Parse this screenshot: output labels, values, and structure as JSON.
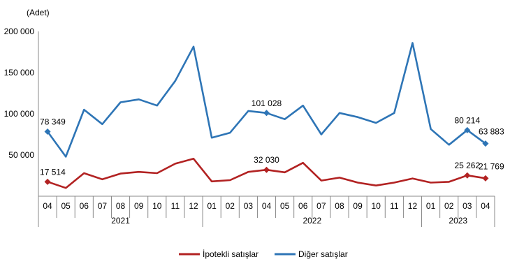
{
  "chart_data": {
    "type": "line",
    "unit_label": "(Adet)",
    "y_ticks": [
      "200 000",
      "150 000",
      "100 000",
      "50 000"
    ],
    "y_tick_values": [
      200000,
      150000,
      100000,
      50000
    ],
    "ylim": [
      0,
      200000
    ],
    "months": [
      "04",
      "05",
      "06",
      "07",
      "08",
      "09",
      "10",
      "11",
      "12",
      "01",
      "02",
      "03",
      "04",
      "05",
      "06",
      "07",
      "08",
      "09",
      "10",
      "11",
      "12",
      "01",
      "02",
      "03",
      "04"
    ],
    "years": [
      {
        "label": "2021",
        "start": 0,
        "end": 8
      },
      {
        "label": "2022",
        "start": 9,
        "end": 20
      },
      {
        "label": "2023",
        "start": 21,
        "end": 24
      }
    ],
    "grid": false,
    "legend_position": "bottom",
    "series": [
      {
        "name": "İpotekli satışlar",
        "color": "#b22222",
        "values": [
          17514,
          10000,
          28000,
          20500,
          27500,
          29500,
          28000,
          39500,
          45500,
          18000,
          19500,
          29500,
          32030,
          29000,
          40500,
          19000,
          22500,
          16500,
          13000,
          16500,
          21500,
          16500,
          17500,
          25262,
          21769
        ]
      },
      {
        "name": "Diğer satışlar",
        "color": "#2e75b6",
        "values": [
          78349,
          48000,
          105000,
          87500,
          114000,
          117500,
          110000,
          140000,
          181500,
          71000,
          77000,
          103500,
          101028,
          93500,
          110000,
          75000,
          101000,
          96000,
          89000,
          101000,
          186000,
          81500,
          62500,
          80214,
          63883
        ]
      }
    ],
    "annotations": [
      {
        "series": 1,
        "index": 0,
        "text": "78 349"
      },
      {
        "series": 1,
        "index": 12,
        "text": "101 028"
      },
      {
        "series": 1,
        "index": 23,
        "text": "80 214"
      },
      {
        "series": 1,
        "index": 24,
        "text": "63 883"
      },
      {
        "series": 0,
        "index": 0,
        "text": "17 514"
      },
      {
        "series": 0,
        "index": 12,
        "text": "32 030"
      },
      {
        "series": 0,
        "index": 23,
        "text": "25 262"
      },
      {
        "series": 0,
        "index": 24,
        "text": "21 769"
      }
    ]
  }
}
